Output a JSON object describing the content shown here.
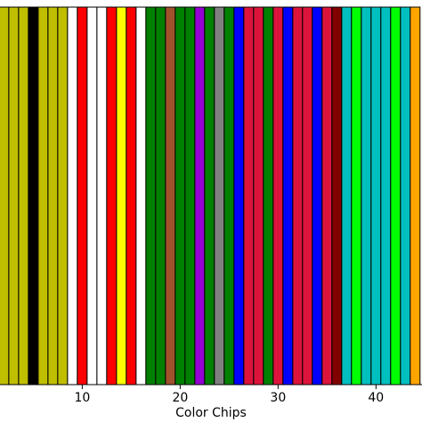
{
  "chart_data": {
    "type": "bar",
    "x": [
      2,
      3,
      4,
      5,
      6,
      7,
      8,
      9,
      10,
      11,
      12,
      13,
      14,
      15,
      16,
      17,
      18,
      19,
      20,
      21,
      22,
      23,
      24,
      25,
      26,
      27,
      28,
      29,
      30,
      31,
      32,
      33,
      34,
      35,
      36,
      37,
      38,
      39,
      40,
      41,
      42,
      43,
      44
    ],
    "values": [
      1,
      1,
      1,
      1,
      1,
      1,
      1,
      1,
      1,
      1,
      1,
      1,
      1,
      1,
      1,
      1,
      1,
      1,
      1,
      1,
      1,
      1,
      1,
      1,
      1,
      1,
      1,
      1,
      1,
      1,
      1,
      1,
      1,
      1,
      1,
      1,
      1,
      1,
      1,
      1,
      1,
      1,
      1
    ],
    "colors": [
      "#bfbf00",
      "#bfbf00",
      "#bfbf00",
      "#000000",
      "#bfbf00",
      "#bfbf00",
      "#bfbf00",
      "#ffffff",
      "#ff0000",
      "#ffffff",
      "#ffffff",
      "#ff0000",
      "#ffff00",
      "#ff0000",
      "#ffffff",
      "#008000",
      "#008000",
      "#a0522d",
      "#008000",
      "#008000",
      "#9400d3",
      "#008000",
      "#808080",
      "#008000",
      "#0000ff",
      "#dc143c",
      "#dc143c",
      "#008000",
      "#dc143c",
      "#0000ff",
      "#dc143c",
      "#dc143c",
      "#0000ff",
      "#dc143c",
      "#800000",
      "#00bfbf",
      "#00ff00",
      "#00bfbf",
      "#00bfbf",
      "#00bfbf",
      "#00ff00",
      "#00bfbf",
      "#ffa500"
    ],
    "xlabel": "Color Chips",
    "xlim": [
      1.6,
      44.7
    ],
    "xticks": [
      10,
      20,
      30,
      40
    ],
    "ylim": [
      0,
      1
    ]
  }
}
